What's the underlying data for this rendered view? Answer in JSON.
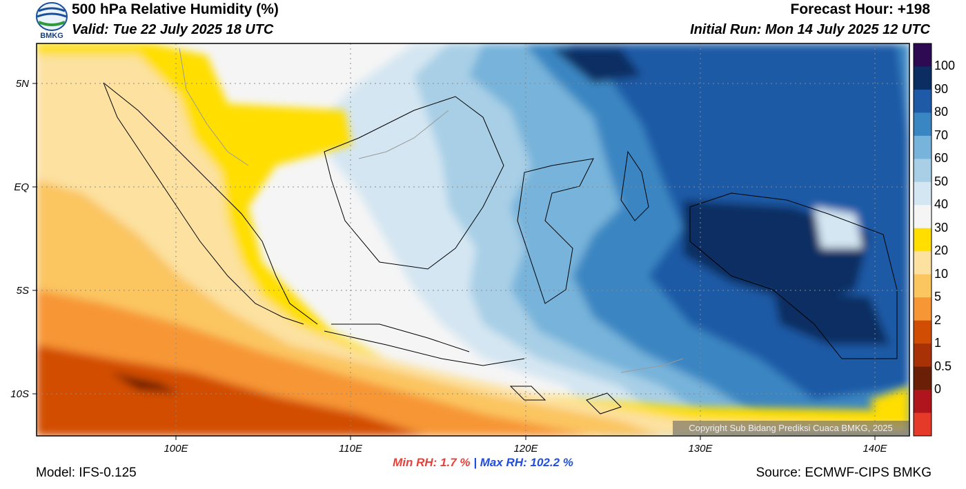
{
  "header": {
    "title": "500 hPa Relative Humidity (%)",
    "valid": "Valid: Tue 22 July 2025 18 UTC",
    "forecast_hour": "Forecast Hour: +198",
    "initial_run": "Initial Run: Mon 14 July 2025 12 UTC"
  },
  "logo": {
    "label": "BMKG",
    "icon": "bmkg-logo-icon"
  },
  "axes": {
    "lat_labels": [
      "5N",
      "EQ",
      "5S",
      "10S"
    ],
    "lon_labels": [
      "100E",
      "110E",
      "120E",
      "130E",
      "140E"
    ]
  },
  "colorbar": {
    "labels": [
      "100",
      "90",
      "80",
      "70",
      "60",
      "50",
      "40",
      "30",
      "20",
      "10",
      "5",
      "2",
      "1",
      "0.5",
      "0"
    ],
    "colors": [
      "#2d0a52",
      "#0c2d62",
      "#1f5aa6",
      "#3a86c2",
      "#77b3da",
      "#a8cfe6",
      "#d4e6f2",
      "#f5f5f5",
      "#ffde00",
      "#fce1a0",
      "#fbc560",
      "#f79634",
      "#d24d04",
      "#a83205",
      "#6b1f06",
      "#b0141c",
      "#e5392a"
    ]
  },
  "stats": {
    "min_label": "Min RH:",
    "min_value": "1.7 %",
    "separator": "|",
    "max_label": "Max RH:",
    "max_value": "102.2 %"
  },
  "footer": {
    "model": "Model: IFS-0.125",
    "source": "Source: ECMWF-CIPS BMKG",
    "copyright": "Copyright Sub Bidang Prediksi Cuaca BMKG, 2025"
  }
}
